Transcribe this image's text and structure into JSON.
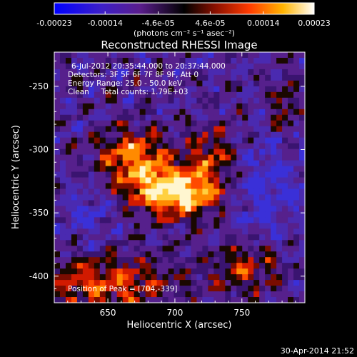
{
  "chart_data": {
    "type": "heatmap",
    "title": "Reconstructed RHESSI Image",
    "xlabel": "Heliocentric X (arcsec)",
    "ylabel": "Heliocentric Y (arcsec)",
    "x_ticks": [
      650,
      700,
      750
    ],
    "y_ticks": [
      -250,
      -300,
      -350,
      -400
    ],
    "xlim": [
      610,
      797
    ],
    "ylim": [
      -421,
      -223
    ],
    "colorbar": {
      "tick_labels": [
        "-0.00023",
        "-0.00014",
        "-4.6e-05",
        "4.6e-05",
        "0.00014",
        "0.00023"
      ],
      "tick_values": [
        -0.00023,
        -0.00014,
        -4.6e-05,
        4.6e-05,
        0.00014,
        0.00023
      ],
      "range": [
        -0.00023,
        0.00023
      ],
      "unit_label": "(photons cm⁻² s⁻¹ asec⁻²)"
    },
    "annotations": [
      "6-Jul-2012 20:35:44.000 to 20:37:44.000",
      "Detectors: 3F 5F 6F 7F 8F 9F, Att 0",
      "Energy Range: 25.0 - 50.0 keV",
      "Clean     Total counts: 1.79E+03"
    ],
    "peak_label": "Position of Peak = [704,-339]",
    "peak": {
      "x": 704,
      "y": -339
    },
    "colors": {
      "background": "#000000",
      "low_end": "#0000ff",
      "zero": "#000000",
      "high_end": "#ffffff"
    }
  },
  "footer_date": "30-Apr-2014 21:52"
}
